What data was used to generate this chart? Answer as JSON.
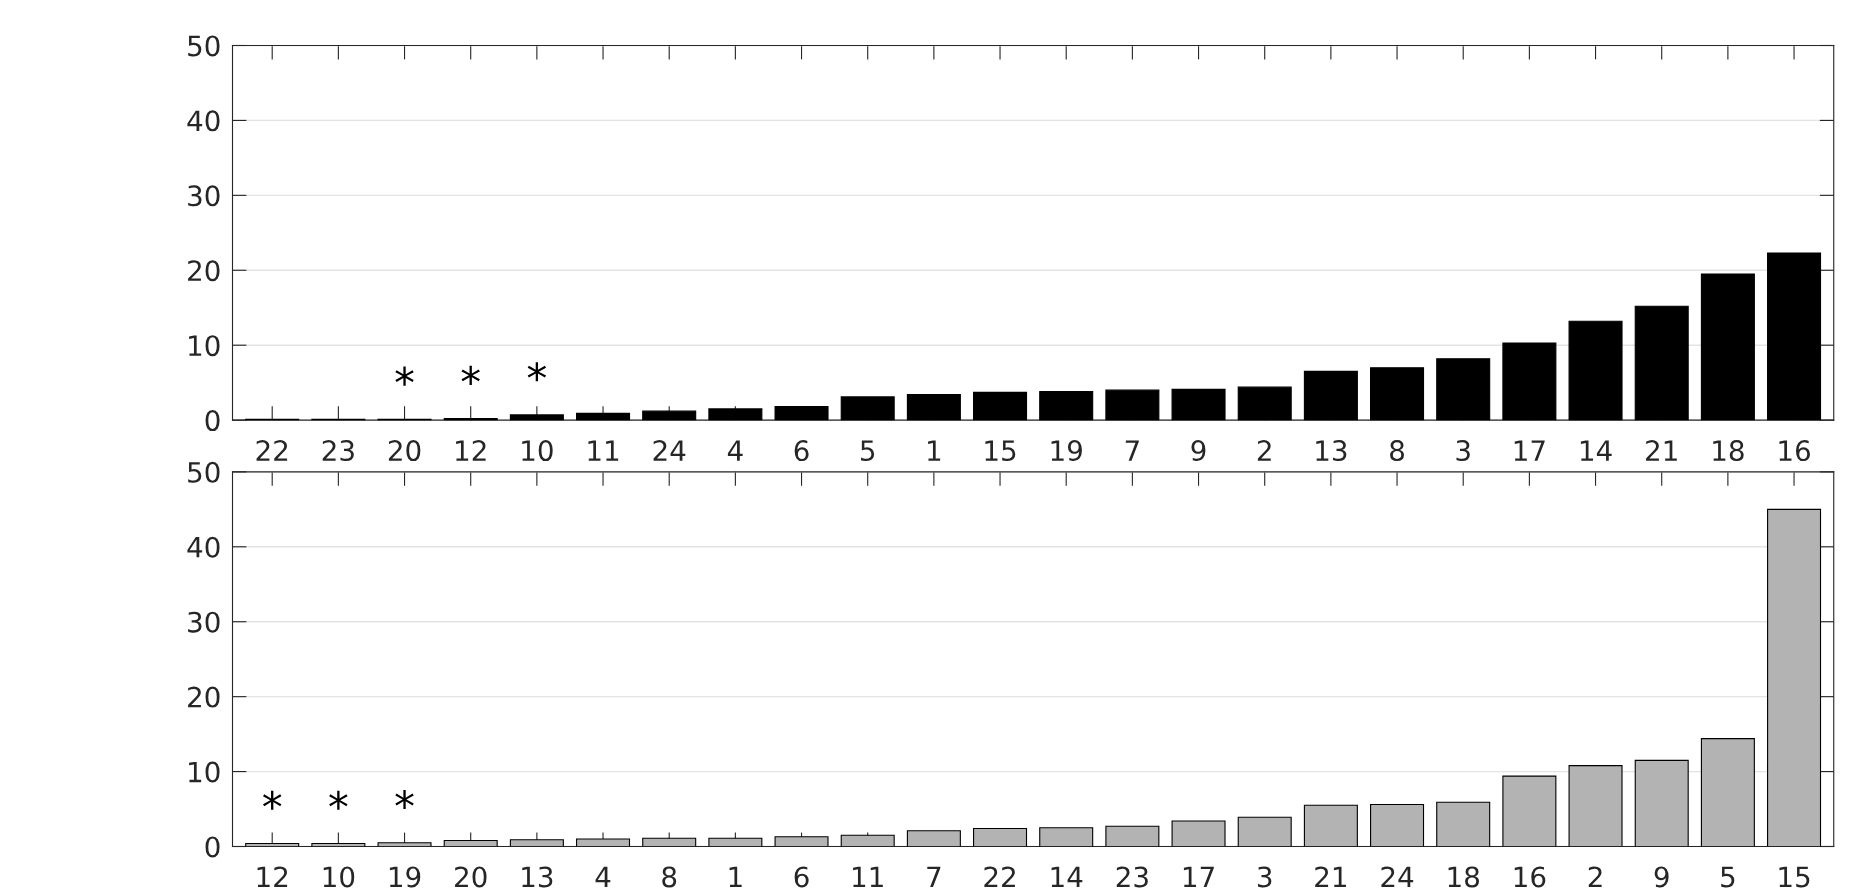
{
  "chart_data": [
    {
      "type": "bar",
      "categories": [
        "22",
        "23",
        "20",
        "12",
        "10",
        "11",
        "24",
        "4",
        "6",
        "5",
        "1",
        "15",
        "19",
        "7",
        "9",
        "2",
        "13",
        "8",
        "3",
        "17",
        "14",
        "21",
        "18",
        "16"
      ],
      "values": [
        0.1,
        0.1,
        0.1,
        0.2,
        0.7,
        0.9,
        1.2,
        1.5,
        1.8,
        3.1,
        3.4,
        3.7,
        3.8,
        4.0,
        4.1,
        4.4,
        6.5,
        7.0,
        8.2,
        10.3,
        13.2,
        15.2,
        19.5,
        22.3
      ],
      "color": "#000000",
      "ylim": [
        0,
        50
      ],
      "yticks": [
        0,
        10,
        20,
        30,
        40,
        50
      ],
      "grid": "y",
      "annotations": [
        {
          "text": "*",
          "x": "20",
          "y": 0.1
        },
        {
          "text": "*",
          "x": "12",
          "y": 0.2
        },
        {
          "text": "*",
          "x": "10",
          "y": 0.7
        }
      ]
    },
    {
      "type": "bar",
      "categories": [
        "12",
        "10",
        "19",
        "20",
        "13",
        "4",
        "8",
        "1",
        "6",
        "11",
        "7",
        "22",
        "14",
        "23",
        "17",
        "3",
        "21",
        "24",
        "18",
        "16",
        "2",
        "9",
        "5",
        "15"
      ],
      "values": [
        0.4,
        0.4,
        0.5,
        0.8,
        0.9,
        1.0,
        1.1,
        1.1,
        1.3,
        1.5,
        2.1,
        2.4,
        2.5,
        2.7,
        3.4,
        3.9,
        5.5,
        5.6,
        5.9,
        9.4,
        10.8,
        11.5,
        14.4,
        45.0
      ],
      "color": "#b3b3b3",
      "ylim": [
        0,
        50
      ],
      "yticks": [
        0,
        10,
        20,
        30,
        40,
        50
      ],
      "grid": "y",
      "annotations": [
        {
          "text": "*",
          "x": "12",
          "y": 0.4
        },
        {
          "text": "*",
          "x": "10",
          "y": 0.4
        },
        {
          "text": "*",
          "x": "19",
          "y": 0.5
        }
      ]
    }
  ]
}
